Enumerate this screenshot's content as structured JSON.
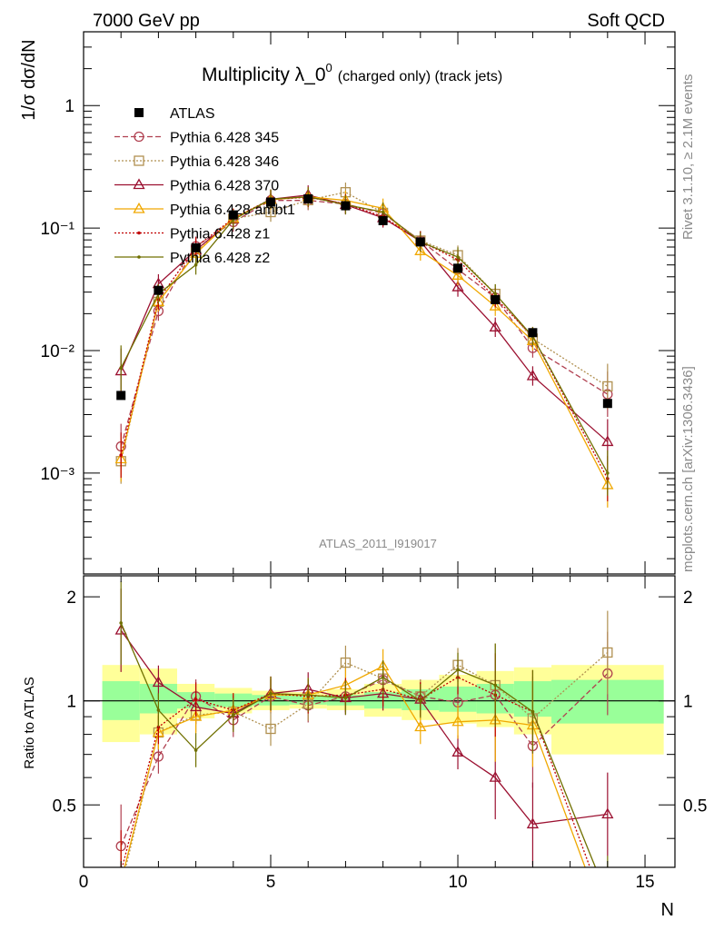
{
  "header": {
    "left": "7000 GeV pp",
    "right": "Soft QCD"
  },
  "side": {
    "rivet": "Rivet 3.1.10, ≥ 2.1M events",
    "site": "mcplots.cern.ch [arXiv:1306.3436]"
  },
  "chart_data": {
    "type": "line",
    "title_main": "Multiplicity λ_0",
    "title_sup": "0",
    "title_sub": "(charged only) (track jets)",
    "watermark": "ATLAS_2011_I919017",
    "xlabel": "N",
    "ylabel": "1/σ dσ/dN",
    "ratio_ylabel": "Ratio to ATLAS",
    "xlim": [
      0,
      15.8
    ],
    "ylim": [
      0.00015,
      4.0
    ],
    "yscale": "log",
    "ratio_ylim": [
      0.33,
      2.3
    ],
    "x_ticks": [
      "0",
      "5",
      "10",
      "15"
    ],
    "y_ticks": [
      "10⁻³",
      "10⁻²",
      "10⁻¹",
      "1"
    ],
    "ratio_ticks": [
      "0.5",
      "1",
      "2"
    ],
    "legend_position": "top-left",
    "data": {
      "name": "ATLAS",
      "x": [
        1,
        2,
        3,
        4,
        5,
        6,
        7,
        8,
        9,
        10,
        11,
        12,
        14
      ],
      "y": [
        0.0043,
        0.031,
        0.069,
        0.128,
        0.163,
        0.173,
        0.152,
        0.115,
        0.077,
        0.047,
        0.026,
        0.014,
        0.0037
      ]
    },
    "bands": {
      "edges": [
        0.5,
        1.5,
        2.5,
        3.5,
        4.5,
        5.5,
        6.5,
        7.5,
        8.5,
        9.5,
        10.5,
        11.5,
        12.5,
        15.5
      ],
      "green": [
        [
          0.88,
          1.14
        ],
        [
          0.92,
          1.12
        ],
        [
          0.95,
          1.06
        ],
        [
          0.96,
          1.05
        ],
        [
          0.97,
          1.04
        ],
        [
          0.975,
          1.035
        ],
        [
          0.97,
          1.04
        ],
        [
          0.95,
          1.06
        ],
        [
          0.94,
          1.08
        ],
        [
          0.93,
          1.1
        ],
        [
          0.92,
          1.12
        ],
        [
          0.9,
          1.14
        ],
        [
          0.86,
          1.15
        ]
      ],
      "yellow": [
        [
          0.76,
          1.27
        ],
        [
          0.8,
          1.24
        ],
        [
          0.89,
          1.12
        ],
        [
          0.92,
          1.09
        ],
        [
          0.94,
          1.07
        ],
        [
          0.95,
          1.06
        ],
        [
          0.94,
          1.08
        ],
        [
          0.9,
          1.12
        ],
        [
          0.88,
          1.15
        ],
        [
          0.86,
          1.19
        ],
        [
          0.84,
          1.22
        ],
        [
          0.8,
          1.25
        ],
        [
          0.7,
          1.27
        ]
      ]
    },
    "series": [
      {
        "name": "Pythia 6.428 345",
        "color": "#b04050",
        "dash": "6,3",
        "marker": "circle",
        "x": [
          1,
          2,
          3,
          4,
          5,
          6,
          7,
          8,
          9,
          10,
          11,
          12,
          14
        ],
        "y": [
          0.00165,
          0.021,
          0.071,
          0.112,
          0.168,
          0.168,
          0.157,
          0.132,
          0.079,
          0.046,
          0.027,
          0.0105,
          0.0044
        ],
        "ratio": [
          0.38,
          0.69,
          1.03,
          0.88,
          1.03,
          0.97,
          1.03,
          1.15,
          1.03,
          0.99,
          1.04,
          0.74,
          1.2
        ]
      },
      {
        "name": "Pythia 6.428 346",
        "color": "#b09050",
        "dash": "2,2",
        "marker": "square",
        "x": [
          1,
          2,
          3,
          4,
          5,
          6,
          7,
          8,
          9,
          10,
          11,
          12,
          14
        ],
        "y": [
          0.00125,
          0.025,
          0.063,
          0.119,
          0.135,
          0.169,
          0.196,
          0.133,
          0.079,
          0.06,
          0.029,
          0.0125,
          0.0051
        ],
        "ratio": [
          0.29,
          0.81,
          0.91,
          0.93,
          0.83,
          0.98,
          1.29,
          1.16,
          1.03,
          1.27,
          1.11,
          0.89,
          1.38
        ]
      },
      {
        "name": "Pythia 6.428 370",
        "color": "#9b1030",
        "dash": "",
        "marker": "triangle",
        "x": [
          1,
          2,
          3,
          4,
          5,
          6,
          7,
          8,
          9,
          10,
          11,
          12,
          14
        ],
        "y": [
          0.0068,
          0.035,
          0.066,
          0.118,
          0.172,
          0.186,
          0.155,
          0.121,
          0.078,
          0.033,
          0.0155,
          0.0062,
          0.0018
        ],
        "ratio": [
          1.6,
          1.13,
          0.96,
          0.92,
          1.05,
          1.08,
          1.02,
          1.05,
          1.01,
          0.71,
          0.6,
          0.44,
          0.47
        ]
      },
      {
        "name": "Pythia 6.428 ambt1",
        "color": "#f0a800",
        "dash": "",
        "marker": "triangle",
        "x": [
          1,
          2,
          3,
          4,
          5,
          6,
          7,
          8,
          9,
          10,
          11,
          12,
          14
        ],
        "y": [
          0.0013,
          0.025,
          0.062,
          0.12,
          0.17,
          0.18,
          0.168,
          0.145,
          0.065,
          0.041,
          0.023,
          0.012,
          0.0008
        ],
        "ratio": [
          0.3,
          0.81,
          0.9,
          0.94,
          1.04,
          1.04,
          1.11,
          1.26,
          0.84,
          0.87,
          0.88,
          0.85,
          0.22
        ]
      },
      {
        "name": "Pythia 6.428 z1",
        "color": "#c00000",
        "dash": "2,2",
        "marker": "dot",
        "x": [
          1,
          2,
          3,
          4,
          5,
          6,
          7,
          8,
          9,
          10,
          11,
          12,
          14
        ],
        "y": [
          0.0014,
          0.026,
          0.07,
          0.12,
          0.172,
          0.178,
          0.158,
          0.124,
          0.078,
          0.055,
          0.027,
          0.013,
          0.0009
        ],
        "ratio": [
          0.32,
          0.84,
          1.01,
          0.94,
          1.05,
          1.03,
          1.04,
          1.08,
          1.01,
          1.17,
          1.04,
          0.93,
          0.24
        ]
      },
      {
        "name": "Pythia 6.428 z2",
        "color": "#707000",
        "dash": "",
        "marker": "dot",
        "x": [
          1,
          2,
          3,
          4,
          5,
          6,
          7,
          8,
          9,
          10,
          11,
          12,
          14
        ],
        "y": [
          0.0072,
          0.029,
          0.05,
          0.117,
          0.172,
          0.18,
          0.155,
          0.135,
          0.077,
          0.058,
          0.029,
          0.013,
          0.001
        ],
        "ratio": [
          1.68,
          0.94,
          0.72,
          0.91,
          1.05,
          1.04,
          1.02,
          1.17,
          1.0,
          1.23,
          1.11,
          0.93,
          0.27
        ]
      }
    ]
  }
}
